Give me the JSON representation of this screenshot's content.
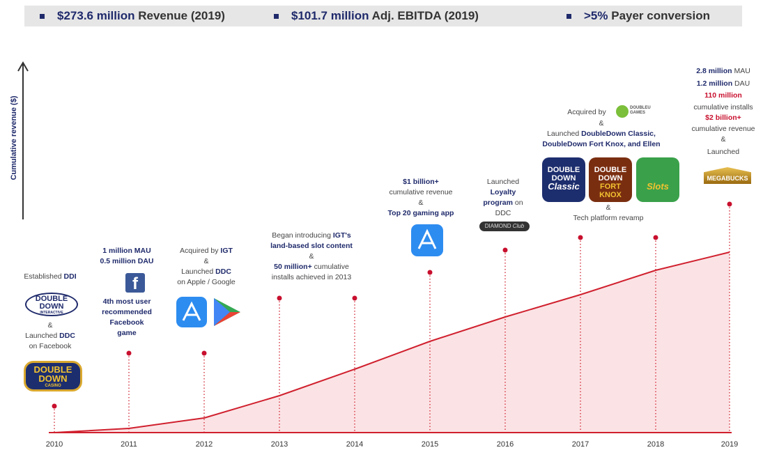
{
  "banner": [
    {
      "value": "$273.6 million",
      "label": "Revenue (2019)"
    },
    {
      "value": "$101.7 million",
      "label": "Adj. EBITDA (2019)"
    },
    {
      "value": ">5%",
      "label": "Payer conversion"
    }
  ],
  "y_axis_label": "Cumulative revenue ($)",
  "years": [
    "2010",
    "2011",
    "2012",
    "2013",
    "2014",
    "2015",
    "2016",
    "2017",
    "2018",
    "2019"
  ],
  "y2010": {
    "text_a": [
      [
        "Established ",
        "DDI"
      ]
    ],
    "logo_a": [
      "DOUBLE",
      "DOWN",
      "INTERACTIVE"
    ],
    "text_b": [
      [
        "&"
      ],
      [
        "Launched ",
        "DDC"
      ],
      [
        "on Facebook"
      ]
    ],
    "logo_b": [
      "DOUBLE",
      "DOWN",
      "CASINO"
    ]
  },
  "y2011": {
    "text_a": [
      [
        "1 million MAU"
      ],
      [
        "0.5 million DAU"
      ]
    ],
    "icon": "f",
    "text_b": [
      [
        "4th most user"
      ],
      [
        "recommended"
      ],
      [
        "Facebook"
      ],
      [
        "game"
      ]
    ]
  },
  "y2012": {
    "text_a": [
      [
        "Acquired by ",
        "IGT"
      ],
      [
        "&"
      ],
      [
        "Launched ",
        "DDC"
      ],
      [
        "on Apple / Google"
      ]
    ]
  },
  "y2013": {
    "text_a": [
      [
        "Began introducing ",
        "IGT's"
      ],
      [
        "land-based slot content"
      ],
      [
        "&"
      ],
      [
        "50 million+",
        " cumulative"
      ],
      [
        "installs achieved in 2013"
      ]
    ]
  },
  "y2015": {
    "text_a": [
      [
        "$1 billion+"
      ],
      [
        "cumulative revenue"
      ],
      [
        "&"
      ],
      [
        "Top 20 gaming app"
      ]
    ]
  },
  "y2016": {
    "text_a": [
      [
        "Launched"
      ],
      [
        "Loyalty"
      ],
      [
        "program",
        " on"
      ],
      [
        "DDC"
      ]
    ],
    "logo_a": [
      "DIAMOND",
      "Club"
    ]
  },
  "y2017": {
    "text_a": [
      [
        "Acquired  by"
      ]
    ],
    "logo_a": [
      "DOUBLEU",
      "GAMES"
    ],
    "text_b": [
      [
        "&"
      ],
      [
        "Launched ",
        "DoubleDown Classic",
        ","
      ],
      [
        "DoubleDown Fort Knox",
        ", and ",
        "Ellen"
      ]
    ],
    "apps": [
      [
        "DOUBLE",
        "DOWN",
        "Classic"
      ],
      [
        "DOUBLE",
        "DOWN",
        "FORT KNOX"
      ],
      [
        "Slots"
      ]
    ],
    "text_c": [
      [
        "&"
      ],
      [
        "Tech platform revamp"
      ]
    ]
  },
  "y2019": {
    "text_a": [
      [
        "2.8 million",
        " MAU"
      ],
      [
        "1.2 million",
        " DAU"
      ],
      [
        "110 million"
      ],
      [
        "cumulative installs"
      ],
      [
        "$2 billion+"
      ],
      [
        "cumulative revenue"
      ],
      [
        "&"
      ],
      [
        "Launched"
      ]
    ],
    "logo_a": [
      "MEGABUCKS"
    ]
  }
}
